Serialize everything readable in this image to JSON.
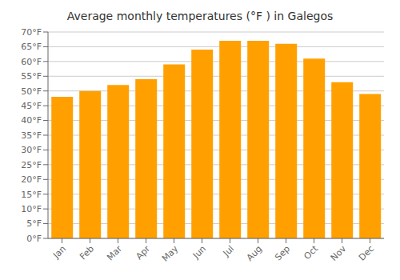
{
  "chart_data": {
    "type": "bar",
    "title": "Average monthly temperatures (°F ) in Galegos",
    "categories": [
      "Jan",
      "Feb",
      "Mar",
      "Apr",
      "May",
      "Jun",
      "Jul",
      "Aug",
      "Sep",
      "Oct",
      "Nov",
      "Dec"
    ],
    "values": [
      48,
      50,
      52,
      54,
      59,
      64,
      67,
      67,
      66,
      61,
      53,
      49
    ],
    "color": "#FFA000",
    "ylim": [
      0,
      70
    ],
    "yticks": [
      {
        "value": 0,
        "label": "0°F"
      },
      {
        "value": 5,
        "label": "5°F"
      },
      {
        "value": 10,
        "label": "10°F"
      },
      {
        "value": 15,
        "label": "15°F"
      },
      {
        "value": 20,
        "label": "20°F"
      },
      {
        "value": 25,
        "label": "25°F"
      },
      {
        "value": 30,
        "label": "30°F"
      },
      {
        "value": 35,
        "label": "35°F"
      },
      {
        "value": 40,
        "label": "40°F"
      },
      {
        "value": 45,
        "label": "45°F"
      },
      {
        "value": 50,
        "label": "50°F"
      },
      {
        "value": 55,
        "label": "55°F"
      },
      {
        "value": 60,
        "label": "60°F"
      },
      {
        "value": 65,
        "label": "65°F"
      },
      {
        "value": 70,
        "label": "70°F"
      }
    ],
    "grid": true
  }
}
